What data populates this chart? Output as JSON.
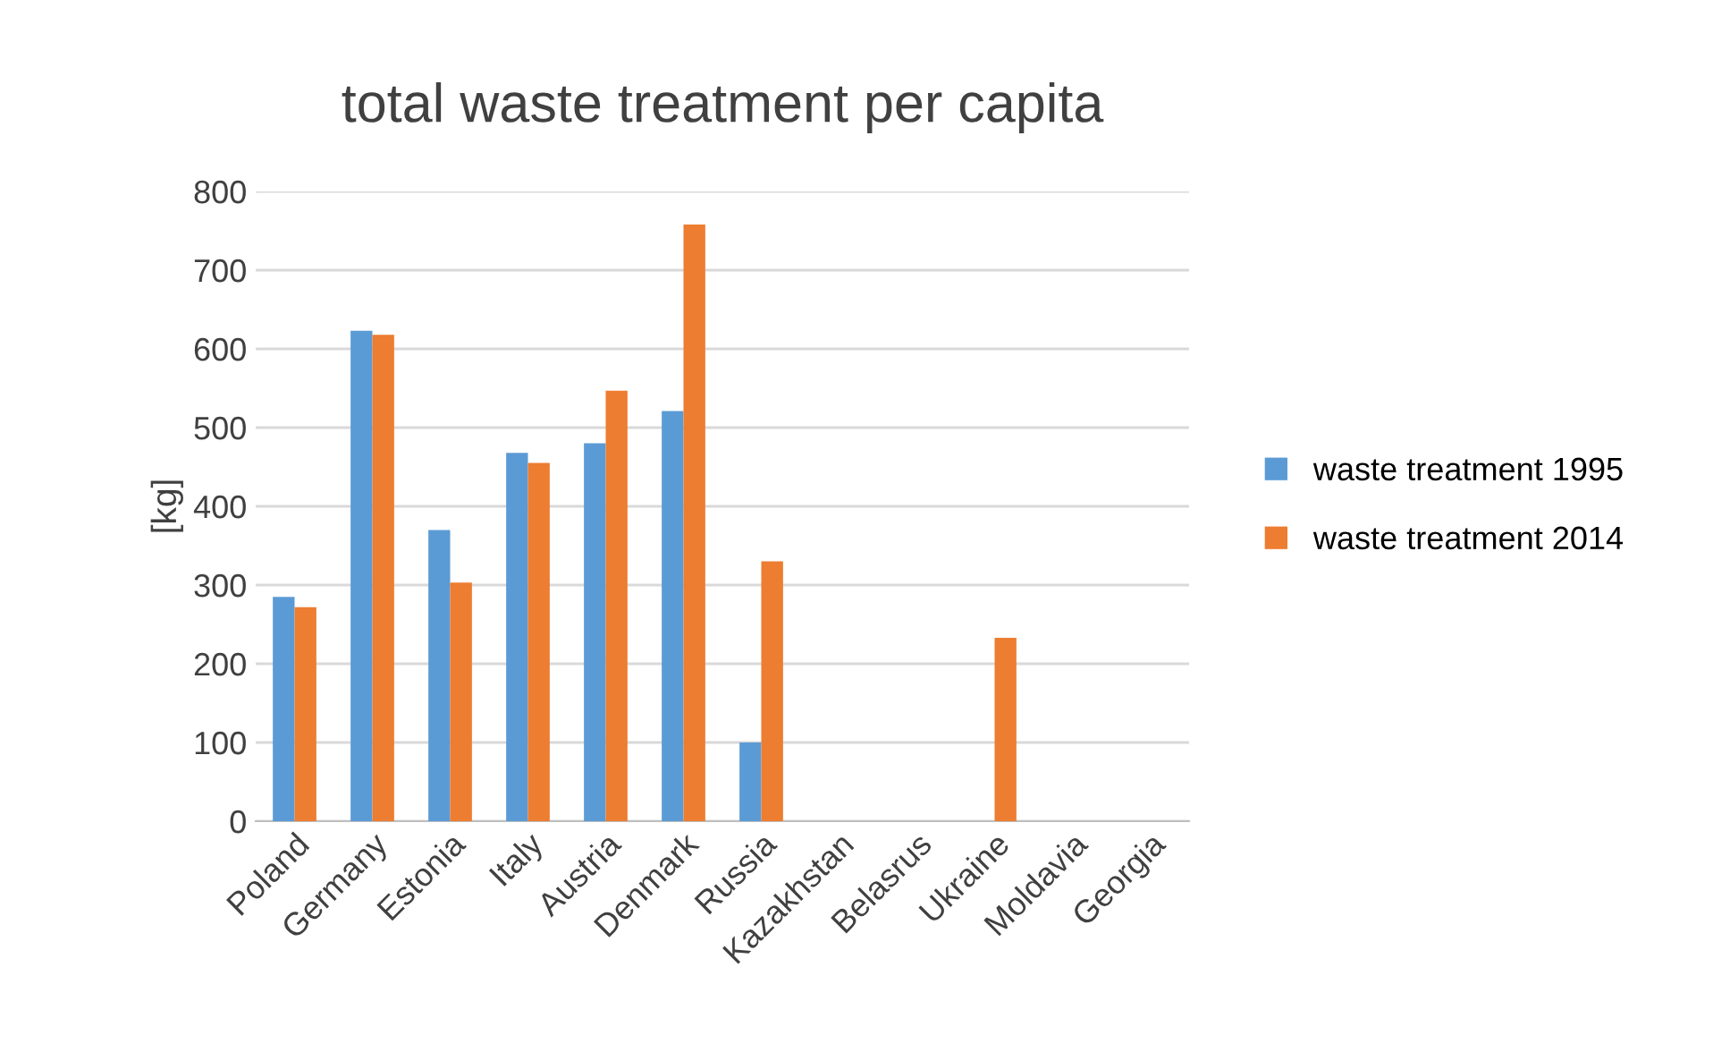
{
  "chart_data": {
    "type": "bar",
    "title": "total waste treatment per capita",
    "ylabel": "[kg]",
    "categories": [
      "Poland",
      "Germany",
      "Estonia",
      "Italy",
      "Austria",
      "Denmark",
      "Russia",
      "Kazakhstan",
      "Belasrus",
      "Ukraine",
      "Moldavia",
      "Georgia"
    ],
    "series": [
      {
        "name": "waste treatment 1995",
        "color": "#5b9bd5",
        "values": [
          285,
          623,
          370,
          468,
          480,
          521,
          100,
          null,
          null,
          null,
          null,
          null
        ]
      },
      {
        "name": "waste treatment 2014",
        "color": "#ed7d31",
        "values": [
          272,
          618,
          303,
          455,
          547,
          758,
          330,
          null,
          null,
          233,
          null,
          null
        ]
      }
    ],
    "ylim": [
      0,
      800
    ],
    "yticks": [
      0,
      100,
      200,
      300,
      400,
      500,
      600,
      700,
      800
    ],
    "grid": "y",
    "legend": "right"
  }
}
